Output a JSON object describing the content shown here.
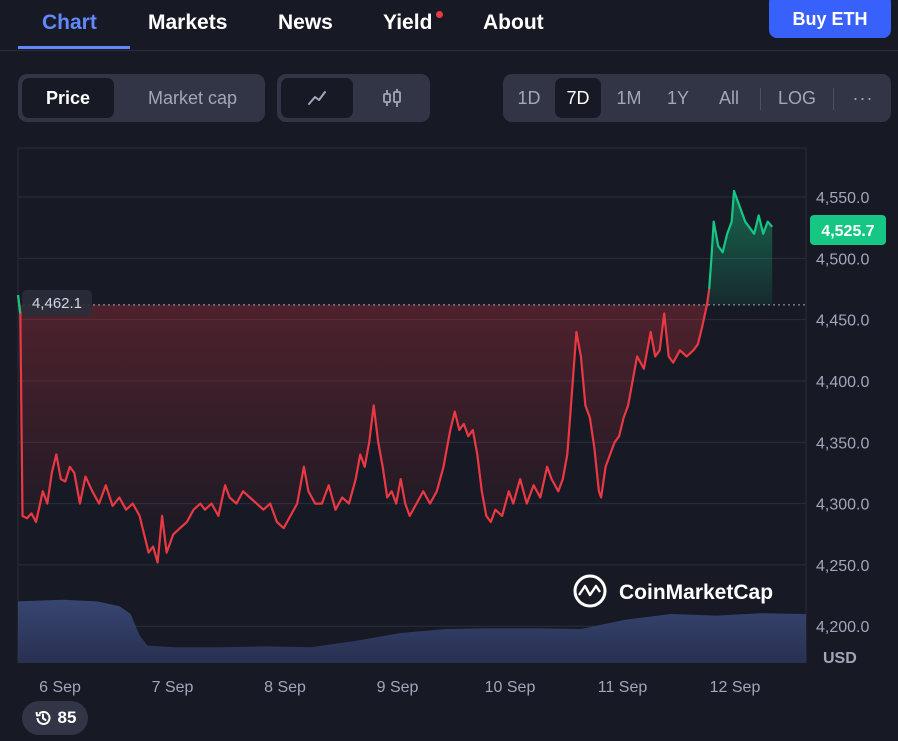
{
  "nav": {
    "tabs": [
      {
        "label": "Chart",
        "active": true
      },
      {
        "label": "Markets"
      },
      {
        "label": "News"
      },
      {
        "label": "Yield",
        "has_dot": true
      },
      {
        "label": "About"
      }
    ],
    "buy_button": "Buy ETH"
  },
  "toolbar": {
    "metric": {
      "price": "Price",
      "market_cap": "Market cap",
      "selected": "Price"
    },
    "chart_style": {
      "icons": [
        "line-chart-icon",
        "candlestick-icon"
      ],
      "selected": "line-chart-icon"
    },
    "ranges": [
      "1D",
      "7D",
      "1M",
      "1Y",
      "All"
    ],
    "selected_range": "7D",
    "log_label": "LOG",
    "more_label": "···"
  },
  "chart_data": {
    "type": "line",
    "y_ticks": [
      "4,550.0",
      "4,500.0",
      "4,450.0",
      "4,400.0",
      "4,350.0",
      "4,300.0",
      "4,250.0",
      "4,200.0"
    ],
    "y_unit_label": "USD",
    "x_ticks": [
      "6 Sep",
      "7 Sep",
      "8 Sep",
      "9 Sep",
      "10 Sep",
      "11 Sep",
      "12 Sep"
    ],
    "ylim": [
      4170,
      4590
    ],
    "open_price": 4462.1,
    "open_label": "4,462.1",
    "current_price": 4525.7,
    "current_label": "4,525.7",
    "x_range_days": [
      0,
      7
    ],
    "price_series": [
      [
        0.0,
        4470
      ],
      [
        0.02,
        4455
      ],
      [
        0.04,
        4290
      ],
      [
        0.08,
        4288
      ],
      [
        0.12,
        4292
      ],
      [
        0.16,
        4285
      ],
      [
        0.22,
        4310
      ],
      [
        0.26,
        4300
      ],
      [
        0.3,
        4325
      ],
      [
        0.34,
        4340
      ],
      [
        0.38,
        4320
      ],
      [
        0.42,
        4318
      ],
      [
        0.46,
        4330
      ],
      [
        0.5,
        4325
      ],
      [
        0.55,
        4300
      ],
      [
        0.6,
        4322
      ],
      [
        0.66,
        4310
      ],
      [
        0.72,
        4300
      ],
      [
        0.78,
        4315
      ],
      [
        0.84,
        4298
      ],
      [
        0.9,
        4305
      ],
      [
        0.96,
        4295
      ],
      [
        1.02,
        4300
      ],
      [
        1.08,
        4290
      ],
      [
        1.12,
        4275
      ],
      [
        1.16,
        4260
      ],
      [
        1.2,
        4265
      ],
      [
        1.24,
        4252
      ],
      [
        1.28,
        4290
      ],
      [
        1.32,
        4260
      ],
      [
        1.38,
        4275
      ],
      [
        1.44,
        4280
      ],
      [
        1.5,
        4285
      ],
      [
        1.56,
        4295
      ],
      [
        1.62,
        4300
      ],
      [
        1.66,
        4295
      ],
      [
        1.72,
        4300
      ],
      [
        1.78,
        4290
      ],
      [
        1.84,
        4315
      ],
      [
        1.88,
        4305
      ],
      [
        1.94,
        4300
      ],
      [
        2.0,
        4310
      ],
      [
        2.06,
        4305
      ],
      [
        2.12,
        4300
      ],
      [
        2.18,
        4295
      ],
      [
        2.24,
        4300
      ],
      [
        2.3,
        4285
      ],
      [
        2.36,
        4280
      ],
      [
        2.42,
        4290
      ],
      [
        2.48,
        4300
      ],
      [
        2.54,
        4330
      ],
      [
        2.58,
        4310
      ],
      [
        2.64,
        4300
      ],
      [
        2.7,
        4300
      ],
      [
        2.76,
        4315
      ],
      [
        2.82,
        4295
      ],
      [
        2.88,
        4305
      ],
      [
        2.94,
        4300
      ],
      [
        3.0,
        4320
      ],
      [
        3.04,
        4340
      ],
      [
        3.08,
        4330
      ],
      [
        3.12,
        4350
      ],
      [
        3.16,
        4380
      ],
      [
        3.2,
        4350
      ],
      [
        3.24,
        4330
      ],
      [
        3.28,
        4305
      ],
      [
        3.32,
        4310
      ],
      [
        3.36,
        4300
      ],
      [
        3.4,
        4320
      ],
      [
        3.44,
        4300
      ],
      [
        3.48,
        4290
      ],
      [
        3.54,
        4300
      ],
      [
        3.6,
        4310
      ],
      [
        3.66,
        4300
      ],
      [
        3.72,
        4310
      ],
      [
        3.78,
        4330
      ],
      [
        3.84,
        4360
      ],
      [
        3.88,
        4375
      ],
      [
        3.92,
        4360
      ],
      [
        3.96,
        4365
      ],
      [
        4.0,
        4355
      ],
      [
        4.04,
        4360
      ],
      [
        4.08,
        4340
      ],
      [
        4.12,
        4310
      ],
      [
        4.16,
        4290
      ],
      [
        4.2,
        4285
      ],
      [
        4.24,
        4295
      ],
      [
        4.3,
        4290
      ],
      [
        4.36,
        4310
      ],
      [
        4.4,
        4300
      ],
      [
        4.46,
        4320
      ],
      [
        4.52,
        4300
      ],
      [
        4.58,
        4315
      ],
      [
        4.64,
        4305
      ],
      [
        4.7,
        4330
      ],
      [
        4.74,
        4320
      ],
      [
        4.8,
        4310
      ],
      [
        4.84,
        4320
      ],
      [
        4.88,
        4340
      ],
      [
        4.92,
        4390
      ],
      [
        4.96,
        4440
      ],
      [
        5.0,
        4420
      ],
      [
        5.04,
        4380
      ],
      [
        5.08,
        4370
      ],
      [
        5.12,
        4345
      ],
      [
        5.16,
        4310
      ],
      [
        5.18,
        4305
      ],
      [
        5.22,
        4330
      ],
      [
        5.26,
        4340
      ],
      [
        5.3,
        4350
      ],
      [
        5.34,
        4355
      ],
      [
        5.38,
        4370
      ],
      [
        5.42,
        4380
      ],
      [
        5.46,
        4400
      ],
      [
        5.5,
        4420
      ],
      [
        5.56,
        4410
      ],
      [
        5.62,
        4440
      ],
      [
        5.66,
        4420
      ],
      [
        5.7,
        4425
      ],
      [
        5.74,
        4455
      ],
      [
        5.78,
        4420
      ],
      [
        5.82,
        4415
      ],
      [
        5.88,
        4425
      ],
      [
        5.94,
        4420
      ],
      [
        6.0,
        4425
      ],
      [
        6.04,
        4430
      ],
      [
        6.08,
        4445
      ],
      [
        6.12,
        4462
      ],
      [
        6.14,
        4475
      ],
      [
        6.16,
        4500
      ],
      [
        6.18,
        4530
      ],
      [
        6.22,
        4510
      ],
      [
        6.26,
        4505
      ],
      [
        6.3,
        4520
      ],
      [
        6.34,
        4530
      ],
      [
        6.36,
        4555
      ],
      [
        6.38,
        4550
      ],
      [
        6.42,
        4540
      ],
      [
        6.46,
        4530
      ],
      [
        6.5,
        4525
      ],
      [
        6.54,
        4520
      ],
      [
        6.58,
        4535
      ],
      [
        6.62,
        4520
      ],
      [
        6.66,
        4530
      ],
      [
        6.7,
        4525.7
      ]
    ],
    "volume_series": [
      [
        0.0,
        0.78
      ],
      [
        0.4,
        0.8
      ],
      [
        0.7,
        0.78
      ],
      [
        0.9,
        0.72
      ],
      [
        1.0,
        0.62
      ],
      [
        1.08,
        0.35
      ],
      [
        1.15,
        0.22
      ],
      [
        1.4,
        0.2
      ],
      [
        1.8,
        0.2
      ],
      [
        2.2,
        0.21
      ],
      [
        2.6,
        0.2
      ],
      [
        3.0,
        0.28
      ],
      [
        3.4,
        0.38
      ],
      [
        3.8,
        0.43
      ],
      [
        4.2,
        0.44
      ],
      [
        4.6,
        0.44
      ],
      [
        5.0,
        0.43
      ],
      [
        5.4,
        0.55
      ],
      [
        5.8,
        0.62
      ],
      [
        6.2,
        0.6
      ],
      [
        6.6,
        0.63
      ],
      [
        7.0,
        0.62
      ]
    ]
  },
  "watermark": "CoinMarketCap",
  "history_count": "85"
}
